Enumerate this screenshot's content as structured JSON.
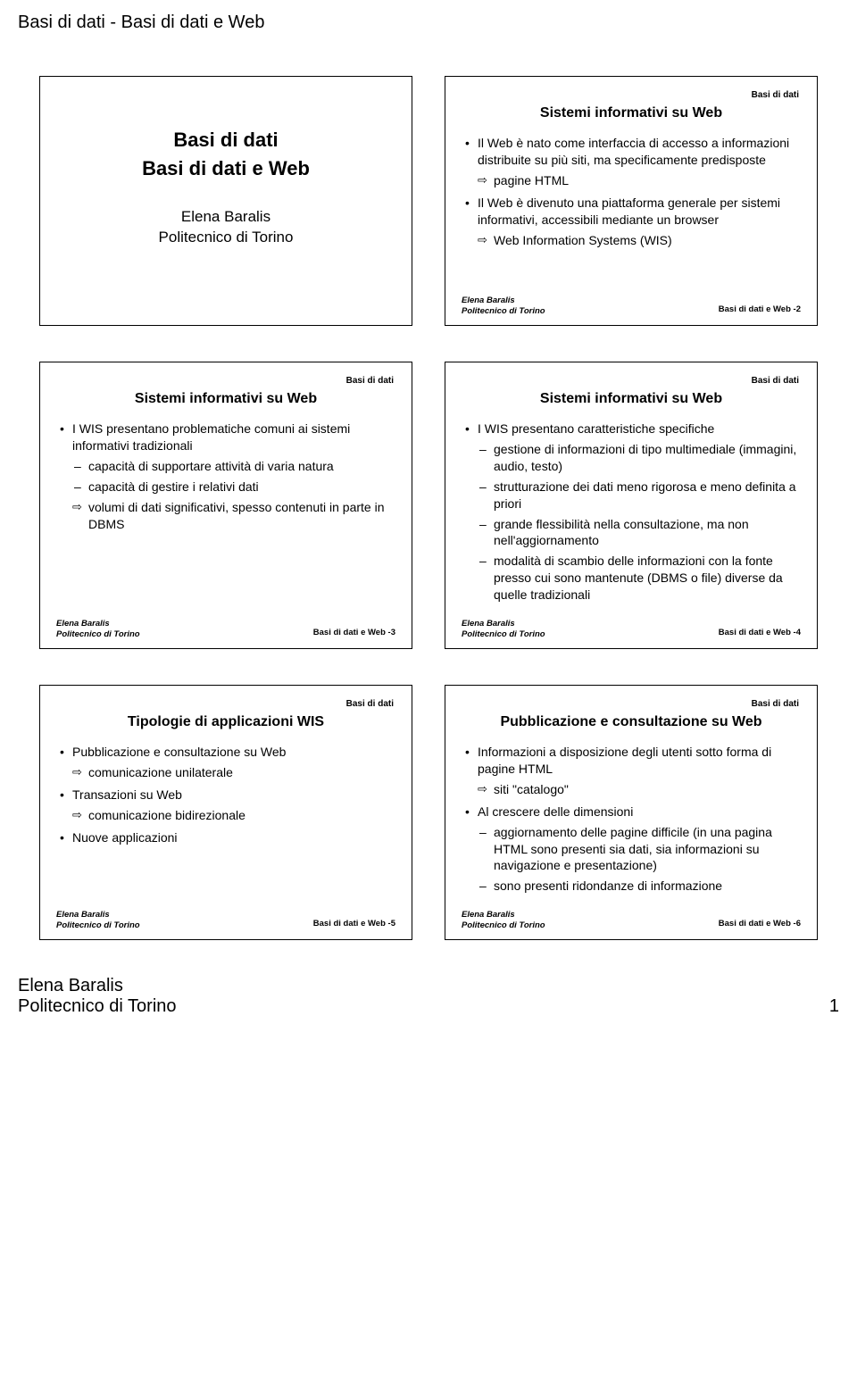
{
  "page": {
    "header": "Basi di dati - Basi di dati e Web",
    "footer_author": "Elena Baralis",
    "footer_inst": "Politecnico di Torino",
    "page_number": "1"
  },
  "common": {
    "tag": "Basi di dati",
    "footer_author": "Elena Baralis",
    "footer_inst": "Politecnico di Torino",
    "footer_prefix": "Basi di dati e Web -"
  },
  "slide1": {
    "course": "Basi di dati",
    "subtitle": "Basi di dati e Web",
    "author": "Elena Baralis",
    "inst": "Politecnico di Torino"
  },
  "slide2": {
    "title": "Sistemi informativi su Web",
    "b1": "Il Web è nato come interfaccia di accesso a informazioni distribuite su più siti, ma specificamente predisposte",
    "b1a": "pagine HTML",
    "b2": "Il Web è divenuto una piattaforma generale per sistemi informativi, accessibili mediante un browser",
    "b2a": "Web Information Systems (WIS)",
    "num": "2"
  },
  "slide3": {
    "title": "Sistemi informativi su Web",
    "b1": "I WIS presentano problematiche comuni ai sistemi informativi tradizionali",
    "b1a": "capacità di supportare attività di varia natura",
    "b1b": "capacità di gestire i relativi dati",
    "b1c": "volumi di dati significativi, spesso contenuti in parte in DBMS",
    "num": "3"
  },
  "slide4": {
    "title": "Sistemi informativi su Web",
    "b1": "I WIS presentano caratteristiche specifiche",
    "b1a": "gestione di informazioni di tipo multimediale (immagini, audio, testo)",
    "b1b": "strutturazione dei dati meno rigorosa e meno definita a priori",
    "b1c": "grande flessibilità nella consultazione, ma non nell'aggiornamento",
    "b1d": "modalità di scambio delle informazioni con la fonte presso cui sono mantenute (DBMS o file) diverse da quelle tradizionali",
    "num": "4"
  },
  "slide5": {
    "title": "Tipologie di applicazioni WIS",
    "b1": "Pubblicazione e consultazione su Web",
    "b1a": "comunicazione unilaterale",
    "b2": "Transazioni su Web",
    "b2a": "comunicazione bidirezionale",
    "b3": "Nuove applicazioni",
    "num": "5"
  },
  "slide6": {
    "title": "Pubblicazione e consultazione su Web",
    "b1": "Informazioni a disposizione degli utenti sotto forma di pagine HTML",
    "b1a": "siti \"catalogo\"",
    "b2": "Al crescere delle dimensioni",
    "b2a": "aggiornamento delle pagine difficile (in una pagina HTML sono presenti sia dati, sia informazioni su navigazione e presentazione)",
    "b2b": "sono presenti ridondanze di informazione",
    "num": "6"
  }
}
